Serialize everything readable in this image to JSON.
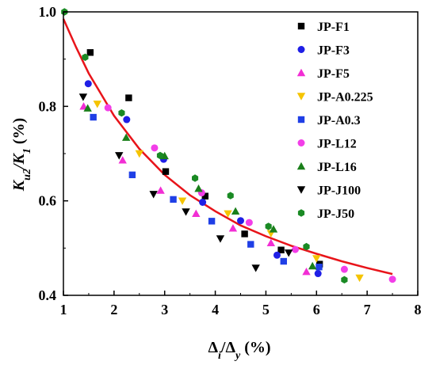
{
  "chart_data": {
    "type": "scatter",
    "xlabel": {
      "main": "Δ",
      "sub1": "i",
      "mid": "/Δ",
      "sub2": "y",
      "unit": " (%)"
    },
    "ylabel": {
      "k1": "K",
      "s1": "u2",
      "mid": "/K",
      "s2": "1",
      "unit": "  (%)"
    },
    "xlim": [
      1,
      8
    ],
    "ylim": [
      0.4,
      1.0
    ],
    "x_ticks": [
      1,
      2,
      3,
      4,
      5,
      6,
      7,
      8
    ],
    "y_ticks": [
      0.4,
      0.6,
      0.8,
      1.0
    ],
    "y_tick_labels": [
      "0.4",
      "0.6",
      "0.8",
      "1.0"
    ],
    "grid": false,
    "legend_position": "right",
    "fit_curve": {
      "color": "#e8141a",
      "points": [
        [
          1.0,
          0.985
        ],
        [
          1.25,
          0.925
        ],
        [
          1.5,
          0.87
        ],
        [
          2.0,
          0.78
        ],
        [
          2.5,
          0.71
        ],
        [
          3.0,
          0.655
        ],
        [
          3.5,
          0.612
        ],
        [
          4.0,
          0.578
        ],
        [
          4.5,
          0.548
        ],
        [
          5.0,
          0.525
        ],
        [
          5.5,
          0.505
        ],
        [
          6.0,
          0.488
        ],
        [
          6.5,
          0.472
        ],
        [
          7.0,
          0.458
        ],
        [
          7.5,
          0.445
        ]
      ]
    },
    "series": [
      {
        "name": "JP-F1",
        "marker": "square",
        "color": "#000000",
        "points": [
          [
            1.53,
            0.914
          ],
          [
            2.29,
            0.818
          ],
          [
            3.02,
            0.662
          ],
          [
            3.8,
            0.61
          ],
          [
            4.58,
            0.53
          ],
          [
            5.3,
            0.496
          ],
          [
            6.06,
            0.466
          ]
        ]
      },
      {
        "name": "JP-F3",
        "marker": "circle",
        "color": "#1f1fe6",
        "points": [
          [
            1.49,
            0.848
          ],
          [
            2.25,
            0.772
          ],
          [
            2.98,
            0.688
          ],
          [
            3.75,
            0.597
          ],
          [
            4.5,
            0.558
          ],
          [
            5.22,
            0.485
          ],
          [
            6.03,
            0.446
          ]
        ]
      },
      {
        "name": "JP-F5",
        "marker": "triangle-up",
        "color": "#f22ed4",
        "points": [
          [
            1.4,
            0.8
          ],
          [
            2.17,
            0.686
          ],
          [
            2.92,
            0.622
          ],
          [
            3.62,
            0.573
          ],
          [
            4.35,
            0.542
          ],
          [
            5.1,
            0.511
          ],
          [
            5.8,
            0.45
          ]
        ]
      },
      {
        "name": "JP-A0.225",
        "marker": "triangle-down",
        "color": "#f5c400",
        "points": [
          [
            1.67,
            0.805
          ],
          [
            2.5,
            0.7
          ],
          [
            3.35,
            0.6
          ],
          [
            4.25,
            0.573
          ],
          [
            5.1,
            0.531
          ],
          [
            6.0,
            0.478
          ],
          [
            6.85,
            0.437
          ]
        ]
      },
      {
        "name": "JP-A0.3",
        "marker": "square",
        "color": "#1f3fe6",
        "points": [
          [
            1.59,
            0.777
          ],
          [
            2.36,
            0.655
          ],
          [
            3.17,
            0.603
          ],
          [
            3.93,
            0.557
          ],
          [
            4.7,
            0.508
          ],
          [
            5.35,
            0.472
          ],
          [
            6.05,
            0.46
          ]
        ]
      },
      {
        "name": "JP-L12",
        "marker": "circle",
        "color": "#f23ee8",
        "points": [
          [
            1.88,
            0.797
          ],
          [
            2.8,
            0.712
          ],
          [
            3.73,
            0.617
          ],
          [
            4.67,
            0.554
          ],
          [
            5.58,
            0.497
          ],
          [
            6.55,
            0.455
          ],
          [
            7.5,
            0.434
          ]
        ]
      },
      {
        "name": "JP-L16",
        "marker": "triangle-up",
        "color": "#1a7f1a",
        "points": [
          [
            1.48,
            0.796
          ],
          [
            2.24,
            0.734
          ],
          [
            3.0,
            0.695
          ],
          [
            3.67,
            0.626
          ],
          [
            4.4,
            0.578
          ],
          [
            5.15,
            0.54
          ],
          [
            5.92,
            0.462
          ]
        ]
      },
      {
        "name": "JP-J100",
        "marker": "triangle-down",
        "color": "#000000",
        "points": [
          [
            1.39,
            0.82
          ],
          [
            2.1,
            0.696
          ],
          [
            2.78,
            0.614
          ],
          [
            3.42,
            0.577
          ],
          [
            4.1,
            0.52
          ],
          [
            4.8,
            0.458
          ],
          [
            5.45,
            0.49
          ]
        ]
      },
      {
        "name": "JP-J50",
        "marker": "hexagon",
        "color": "#1a8a24",
        "points": [
          [
            1.02,
            1.0
          ],
          [
            1.43,
            0.904
          ],
          [
            2.15,
            0.786
          ],
          [
            2.91,
            0.696
          ],
          [
            3.6,
            0.648
          ],
          [
            4.3,
            0.611
          ],
          [
            5.05,
            0.546
          ],
          [
            5.8,
            0.503
          ],
          [
            6.55,
            0.433
          ]
        ]
      }
    ]
  }
}
